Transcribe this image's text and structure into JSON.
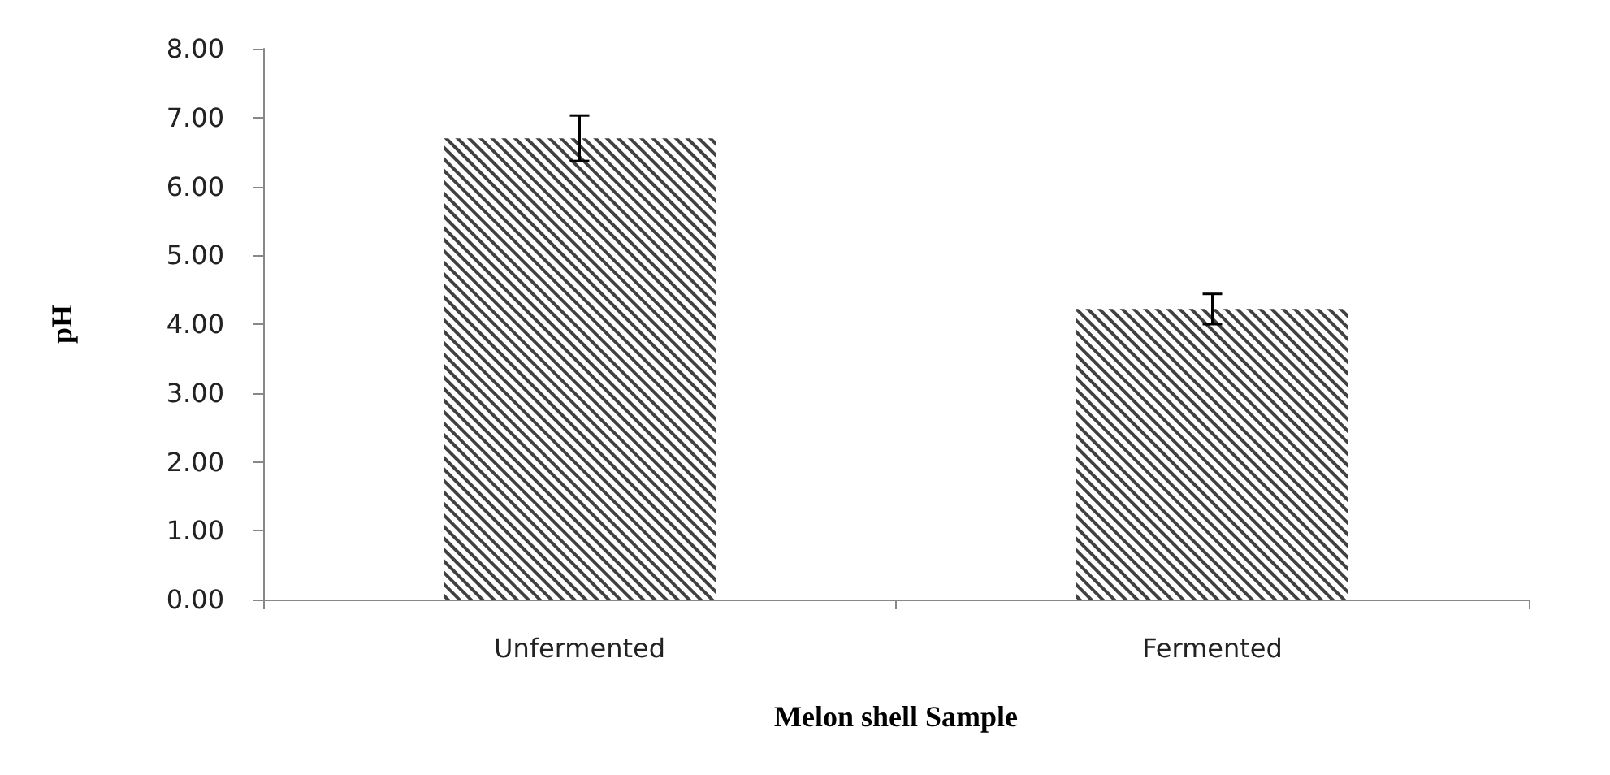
{
  "chart_data": {
    "type": "bar",
    "xlabel": "Melon shell Sample",
    "ylabel": "pH",
    "categories": [
      "Unfermented",
      "Fermented"
    ],
    "values": [
      6.7,
      4.22
    ],
    "errors": [
      0.33,
      0.22
    ],
    "color": "#404040",
    "ylim": [
      0,
      8
    ],
    "yticks": [
      {
        "value": 0,
        "label": "0.00"
      },
      {
        "value": 1,
        "label": "1.00"
      },
      {
        "value": 2,
        "label": "2.00"
      },
      {
        "value": 3,
        "label": "3.00"
      },
      {
        "value": 4,
        "label": "4.00"
      },
      {
        "value": 5,
        "label": "5.00"
      },
      {
        "value": 6,
        "label": "6.00"
      },
      {
        "value": 7,
        "label": "7.00"
      },
      {
        "value": 8,
        "label": "8.00"
      }
    ],
    "grid": false
  }
}
